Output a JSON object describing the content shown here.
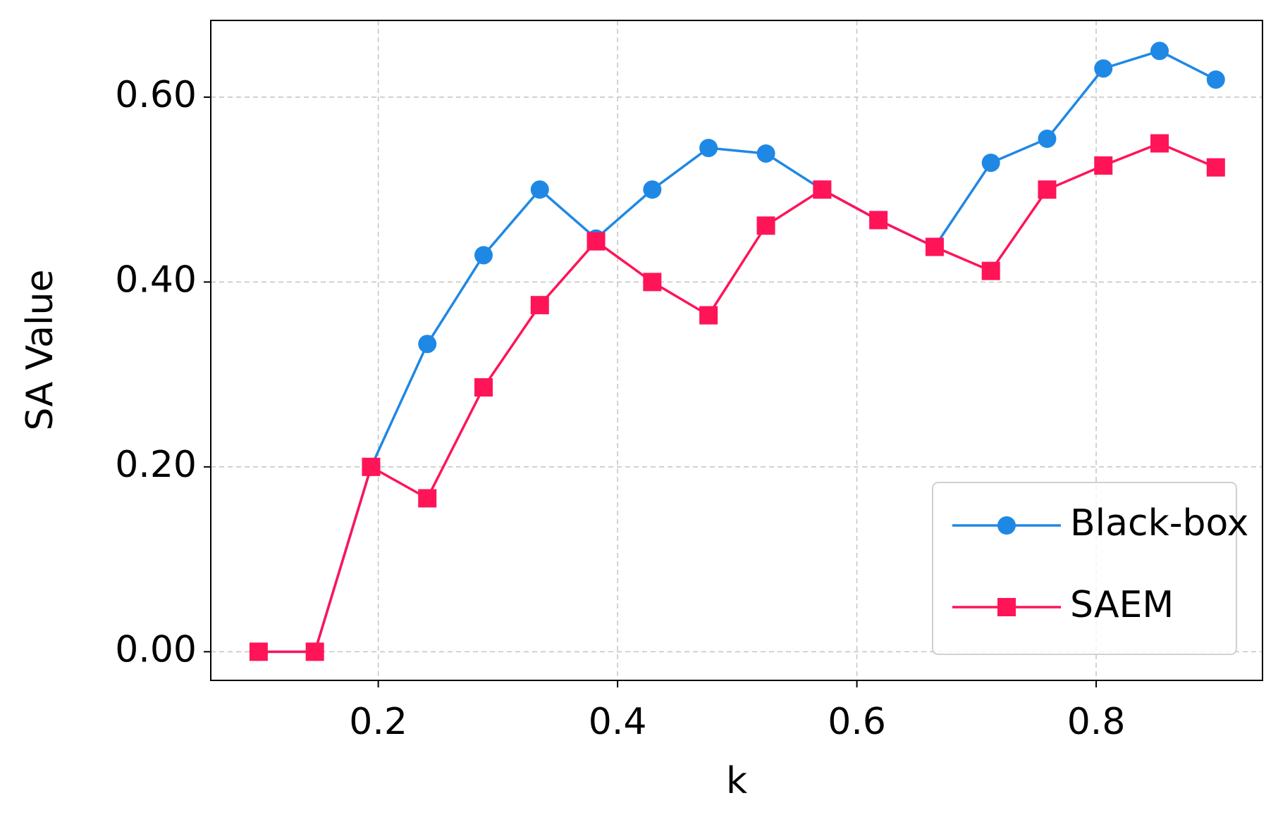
{
  "chart_data": {
    "type": "line",
    "x_label": "k",
    "y_label": "SA Value",
    "x": [
      0.1,
      0.147,
      0.194,
      0.241,
      0.288,
      0.335,
      0.382,
      0.429,
      0.476,
      0.524,
      0.571,
      0.618,
      0.665,
      0.712,
      0.759,
      0.806,
      0.853,
      0.9
    ],
    "series": [
      {
        "name": "Black-box",
        "color": "#1f88e5",
        "marker": "circle",
        "values": [
          0,
          0,
          0.2,
          0.333,
          0.429,
          0.5,
          0.447,
          0.5,
          0.545,
          0.539,
          0.5,
          0.467,
          0.438,
          0.529,
          0.555,
          0.631,
          0.65,
          0.619
        ]
      },
      {
        "name": "SAEM",
        "color": "#ff1458",
        "marker": "square",
        "values": [
          0,
          0,
          0.2,
          0.166,
          0.286,
          0.375,
          0.444,
          0.4,
          0.364,
          0.461,
          0.5,
          0.467,
          0.438,
          0.412,
          0.5,
          0.526,
          0.55,
          0.524
        ]
      }
    ],
    "xlim": [
      0.06,
      0.939
    ],
    "ylim": [
      -0.031,
      0.683
    ],
    "xticks": [
      0.2,
      0.4,
      0.6,
      0.8
    ],
    "yticks": [
      {
        "value": 0,
        "label": "0.00"
      },
      {
        "value": 0.2,
        "label": "0.20"
      },
      {
        "value": 0.4,
        "label": "0.40"
      },
      {
        "value": 0.6,
        "label": "0.60"
      }
    ],
    "grid": true,
    "legend": "lower right"
  }
}
